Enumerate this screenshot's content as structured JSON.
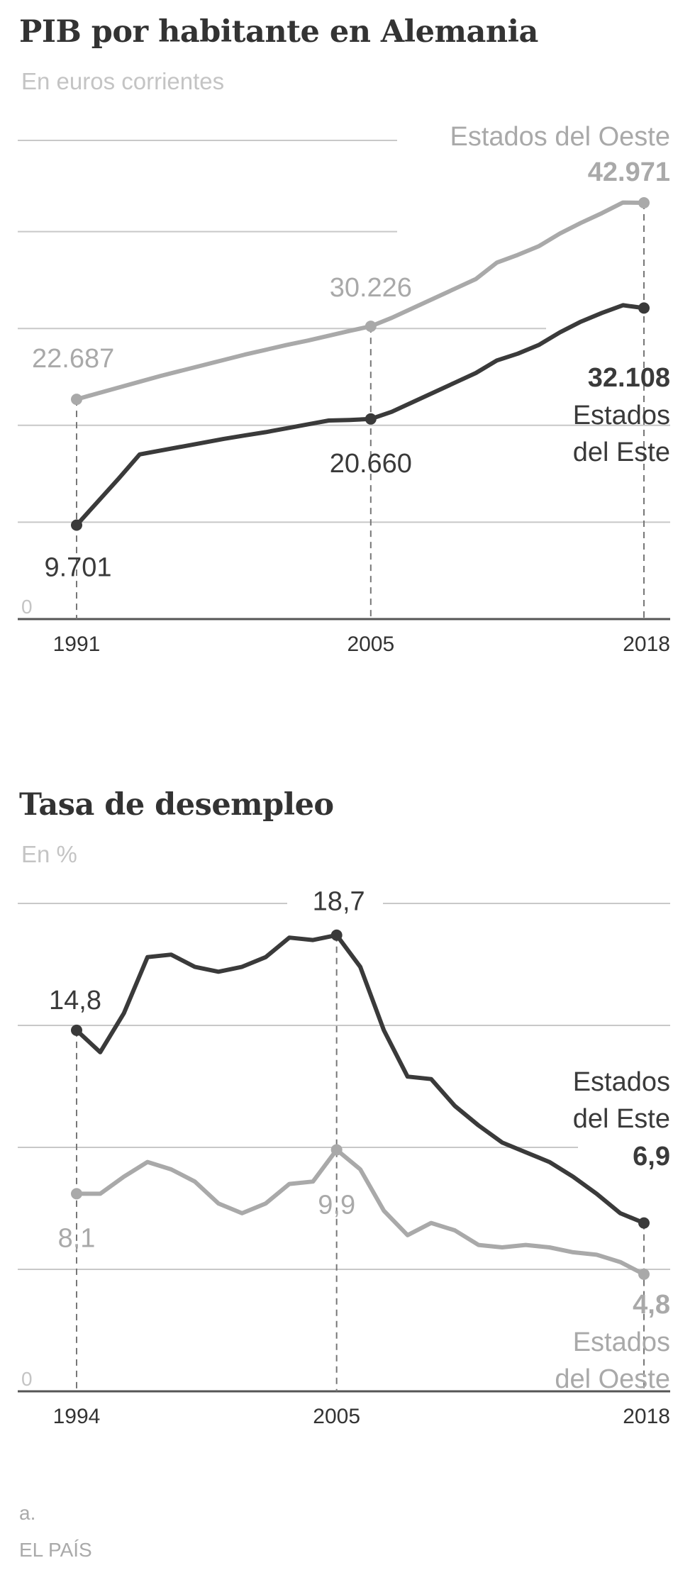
{
  "chart_data": [
    {
      "type": "line",
      "title": "PIB por habitante en Alemania",
      "subtitle": "En euros corrientes",
      "x_ticks": [
        "1991",
        "2005",
        "2018"
      ],
      "ylim": [
        0,
        50000
      ],
      "y_zero_label": "0",
      "gridlines": [
        10000,
        20000,
        30000,
        40000
      ],
      "series": [
        {
          "name": "Estados del Oeste",
          "color": "#a9a9a9",
          "x": [
            1991,
            1992,
            1993,
            1994,
            1995,
            1996,
            1997,
            1998,
            1999,
            2000,
            2001,
            2002,
            2003,
            2004,
            2005,
            2006,
            2007,
            2008,
            2009,
            2010,
            2011,
            2012,
            2013,
            2014,
            2015,
            2016,
            2017,
            2018
          ],
          "values": [
            22687,
            23300,
            23900,
            24500,
            25100,
            25650,
            26200,
            26750,
            27300,
            27800,
            28300,
            28750,
            29250,
            29750,
            30226,
            31100,
            32100,
            33100,
            34100,
            35100,
            36800,
            37600,
            38500,
            39800,
            40900,
            41900,
            43000,
            42971
          ]
        },
        {
          "name": "Estados del Este",
          "color": "#3a3a3a",
          "x": [
            1991,
            1992,
            1993,
            1994,
            1995,
            1996,
            1997,
            1998,
            1999,
            2000,
            2001,
            2002,
            2003,
            2004,
            2005,
            2006,
            2007,
            2008,
            2009,
            2010,
            2011,
            2012,
            2013,
            2014,
            2015,
            2016,
            2017,
            2018
          ],
          "values": [
            9701,
            12100,
            14500,
            17000,
            17400,
            17800,
            18200,
            18600,
            18950,
            19300,
            19700,
            20100,
            20500,
            20560,
            20660,
            21400,
            22400,
            23400,
            24400,
            25400,
            26700,
            27400,
            28300,
            29600,
            30700,
            31600,
            32400,
            32108
          ]
        }
      ],
      "value_labels": {
        "west_start": "22.687",
        "west_mid": "30.226",
        "west_end": "42.971",
        "east_start": "9.701",
        "east_mid": "20.660",
        "east_end": "32.108"
      },
      "legend": {
        "west": "Estados del Oeste",
        "east_line1": "Estados",
        "east_line2": "del Este"
      }
    },
    {
      "type": "line",
      "title": "Tasa de desempleo",
      "subtitle": "En %",
      "x_ticks": [
        "1994",
        "2005",
        "2018"
      ],
      "ylim": [
        0,
        20
      ],
      "y_zero_label": "0",
      "gridlines": [
        5,
        10,
        15,
        20
      ],
      "series": [
        {
          "name": "Estados del Este",
          "color": "#3a3a3a",
          "x": [
            1994,
            1995,
            1996,
            1997,
            1998,
            1999,
            2000,
            2001,
            2002,
            2003,
            2004,
            2005,
            2006,
            2007,
            2008,
            2009,
            2010,
            2011,
            2012,
            2013,
            2014,
            2015,
            2016,
            2017,
            2018
          ],
          "values": [
            14.8,
            13.9,
            15.5,
            17.8,
            17.9,
            17.4,
            17.2,
            17.4,
            17.8,
            18.6,
            18.5,
            18.7,
            17.4,
            14.8,
            12.9,
            12.8,
            11.7,
            10.9,
            10.2,
            9.8,
            9.4,
            8.8,
            8.1,
            7.3,
            6.9
          ]
        },
        {
          "name": "Estados del Oeste",
          "color": "#a9a9a9",
          "x": [
            1994,
            1995,
            1996,
            1997,
            1998,
            1999,
            2000,
            2001,
            2002,
            2003,
            2004,
            2005,
            2006,
            2007,
            2008,
            2009,
            2010,
            2011,
            2012,
            2013,
            2014,
            2015,
            2016,
            2017,
            2018
          ],
          "values": [
            8.1,
            8.1,
            8.8,
            9.4,
            9.1,
            8.6,
            7.7,
            7.3,
            7.7,
            8.5,
            8.6,
            9.9,
            9.1,
            7.4,
            6.4,
            6.9,
            6.6,
            6.0,
            5.9,
            6.0,
            5.9,
            5.7,
            5.6,
            5.3,
            4.8
          ]
        }
      ],
      "value_labels": {
        "east_start": "14,8",
        "east_mid": "18,7",
        "east_end": "6,9",
        "west_start": "8,1",
        "west_mid": "9,9",
        "west_end": "4,8"
      },
      "legend": {
        "east_line1": "Estados",
        "east_line2": "del Este",
        "west_line1": "Estados",
        "west_line2": "del Oeste"
      }
    }
  ],
  "footer": {
    "note": "a.",
    "source": "EL PAÍS"
  }
}
